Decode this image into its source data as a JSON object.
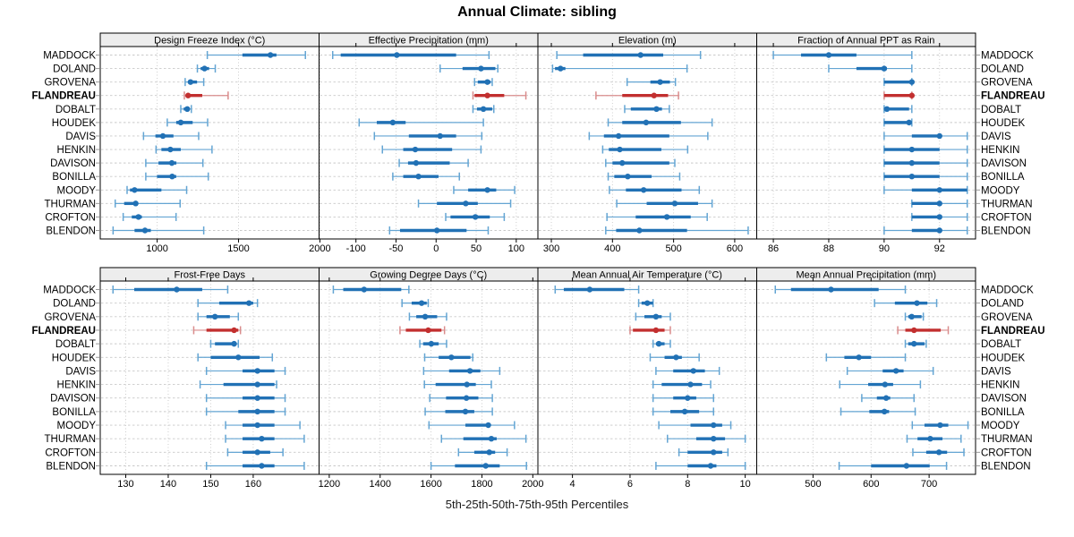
{
  "title": "Annual Climate: sibling",
  "caption": "5th-25th-50th-75th-95th Percentiles",
  "colors": {
    "series": "#2171B5",
    "series_light": "#64A5D3",
    "highlight": "#C22F2F",
    "highlight_light": "#D98C8C",
    "strip_bg": "#EDEDED",
    "grid": "#C9C9C9",
    "border": "#000000"
  },
  "chart_data": {
    "type": "dotplot-trellis",
    "grid": {
      "rows": 2,
      "cols": 4,
      "gridlines": "dashed"
    },
    "percentiles": [
      5,
      25,
      50,
      75,
      95
    ],
    "stations": [
      "MADDOCK",
      "DOLAND",
      "GROVENA",
      "FLANDREAU",
      "DOBALT",
      "HOUDEK",
      "DAVIS",
      "HENKIN",
      "DAVISON",
      "BONILLA",
      "MOODY",
      "THURMAN",
      "CROFTON",
      "BLENDON"
    ],
    "highlight_station": "FLANDREAU",
    "panels": [
      {
        "title": "Design Freeze Index (°C)",
        "xlim": [
          650,
          1995
        ],
        "ticks": [
          1000,
          1500,
          2000
        ],
        "values": [
          [
            1308,
            1524,
            1696,
            1733,
            1911
          ],
          [
            1247,
            1267,
            1291,
            1319,
            1357
          ],
          [
            1172,
            1190,
            1205,
            1245,
            1286
          ],
          [
            1167,
            1175,
            1190,
            1277,
            1436
          ],
          [
            1145,
            1163,
            1185,
            1200,
            1210
          ],
          [
            1062,
            1117,
            1145,
            1218,
            1310
          ],
          [
            916,
            989,
            1035,
            1100,
            1255
          ],
          [
            993,
            1026,
            1081,
            1145,
            1337
          ],
          [
            930,
            1008,
            1090,
            1118,
            1281
          ],
          [
            930,
            999,
            1092,
            1117,
            1314
          ],
          [
            815,
            833,
            861,
            1026,
            1181
          ],
          [
            742,
            797,
            868,
            879,
            1141
          ],
          [
            791,
            844,
            885,
            906,
            1116
          ],
          [
            729,
            861,
            925,
            961,
            1286
          ]
        ]
      },
      {
        "title": "Effective Precipitation (mm)",
        "xlim": [
          -146,
          127
        ],
        "ticks": [
          -100,
          -50,
          0,
          50,
          100
        ],
        "values": [
          [
            -129,
            -119,
            -49,
            25,
            66
          ],
          [
            5,
            33,
            56,
            74,
            77
          ],
          [
            48,
            52,
            64,
            68,
            70
          ],
          [
            46,
            48,
            64,
            85,
            112
          ],
          [
            46,
            51,
            59,
            70,
            72
          ],
          [
            -96,
            -74,
            -54,
            -38,
            59
          ],
          [
            -77,
            -34,
            5,
            25,
            57
          ],
          [
            -67,
            -41,
            -26,
            20,
            56
          ],
          [
            -46,
            -35,
            -25,
            17,
            40
          ],
          [
            -54,
            -41,
            -22,
            3,
            29
          ],
          [
            22,
            40,
            64,
            75,
            98
          ],
          [
            -22,
            1,
            37,
            52,
            93
          ],
          [
            12,
            18,
            49,
            67,
            85
          ],
          [
            -58,
            -45,
            1,
            38,
            65
          ]
        ]
      },
      {
        "title": "Elevation (m)",
        "xlim": [
          278,
          636
        ],
        "ticks": [
          300,
          400,
          500,
          600
        ],
        "values": [
          [
            309,
            352,
            446,
            483,
            544
          ],
          [
            302,
            306,
            315,
            323,
            522
          ],
          [
            424,
            462,
            478,
            494,
            503
          ],
          [
            373,
            416,
            468,
            491,
            508
          ],
          [
            420,
            430,
            472,
            481,
            493
          ],
          [
            393,
            416,
            455,
            512,
            563
          ],
          [
            362,
            386,
            410,
            493,
            556
          ],
          [
            384,
            394,
            412,
            480,
            523
          ],
          [
            389,
            400,
            416,
            493,
            502
          ],
          [
            393,
            403,
            425,
            464,
            510
          ],
          [
            395,
            422,
            451,
            513,
            542
          ],
          [
            407,
            456,
            502,
            540,
            563
          ],
          [
            391,
            438,
            489,
            528,
            555
          ],
          [
            389,
            406,
            444,
            522,
            622
          ]
        ]
      },
      {
        "title": "Fraction of Annual PPT as Rain",
        "xlim": [
          85.4,
          93.3
        ],
        "ticks": [
          86,
          88,
          90,
          92
        ],
        "values": [
          [
            86,
            87,
            88,
            89,
            91
          ],
          [
            88,
            89,
            90,
            90.1,
            91
          ],
          [
            90,
            90,
            91,
            91,
            91
          ],
          [
            90,
            90,
            91,
            91,
            91
          ],
          [
            90,
            90,
            90.1,
            90.9,
            91
          ],
          [
            90,
            90,
            90.9,
            91,
            91
          ],
          [
            90,
            91,
            92,
            92,
            93
          ],
          [
            90,
            90,
            91,
            92,
            93
          ],
          [
            90,
            90,
            91,
            92,
            93
          ],
          [
            90,
            90,
            91,
            92,
            93
          ],
          [
            90,
            91,
            92,
            93,
            93
          ],
          [
            91,
            91,
            92,
            92,
            93
          ],
          [
            91,
            91,
            92,
            92,
            93
          ],
          [
            90,
            91,
            92,
            92,
            93
          ]
        ]
      },
      {
        "title": "Frost-Free Days",
        "xlim": [
          124,
          175.5
        ],
        "ticks": [
          130,
          140,
          150,
          160
        ],
        "values": [
          [
            127,
            132,
            142,
            148,
            154
          ],
          [
            147,
            152,
            159,
            160,
            161
          ],
          [
            147,
            149,
            151,
            154.5,
            156.5
          ],
          [
            146,
            149,
            155.5,
            156.5,
            157
          ],
          [
            150,
            151,
            155.5,
            156,
            156.5
          ],
          [
            147,
            150,
            156.5,
            161.5,
            164.5
          ],
          [
            149,
            157.5,
            161,
            165,
            167.5
          ],
          [
            147.5,
            153,
            161,
            165,
            165.5
          ],
          [
            149,
            157.5,
            161,
            165,
            167.5
          ],
          [
            149,
            156.5,
            161,
            165,
            167.5
          ],
          [
            153.5,
            157.5,
            161,
            165,
            171
          ],
          [
            153.5,
            157.5,
            162,
            165,
            172
          ],
          [
            154,
            157.5,
            161,
            164,
            167
          ],
          [
            149,
            157.5,
            162,
            165,
            172
          ]
        ]
      },
      {
        "title": "Growing Degree Days (°C)",
        "xlim": [
          1160,
          2020
        ],
        "ticks": [
          1200,
          1400,
          1600,
          1800,
          2000
        ],
        "values": [
          [
            1216,
            1255,
            1337,
            1483,
            1513
          ],
          [
            1486,
            1524,
            1563,
            1583,
            1589
          ],
          [
            1515,
            1542,
            1577,
            1624,
            1661
          ],
          [
            1478,
            1501,
            1589,
            1641,
            1653
          ],
          [
            1556,
            1569,
            1601,
            1630,
            1661
          ],
          [
            1575,
            1630,
            1680,
            1755,
            1764
          ],
          [
            1571,
            1671,
            1753,
            1794,
            1870
          ],
          [
            1574,
            1618,
            1741,
            1776,
            1837
          ],
          [
            1595,
            1659,
            1739,
            1786,
            1841
          ],
          [
            1577,
            1656,
            1735,
            1770,
            1841
          ],
          [
            1592,
            1735,
            1825,
            1832,
            1928
          ],
          [
            1641,
            1727,
            1837,
            1858,
            1973
          ],
          [
            1708,
            1770,
            1829,
            1852,
            1899
          ],
          [
            1600,
            1694,
            1815,
            1870,
            1975
          ]
        ]
      },
      {
        "title": "Mean Annual Air Temperature (°C)",
        "xlim": [
          2.8,
          10.4
        ],
        "ticks": [
          4,
          6,
          8,
          10
        ],
        "values": [
          [
            3.4,
            3.7,
            4.6,
            5.8,
            6.3
          ],
          [
            6.3,
            6.4,
            6.6,
            6.8,
            6.8
          ],
          [
            6.2,
            6.5,
            6.9,
            7.1,
            7.4
          ],
          [
            6.0,
            6.1,
            6.9,
            7.2,
            7.4
          ],
          [
            6.8,
            6.9,
            7.0,
            7.2,
            7.4
          ],
          [
            6.7,
            7.2,
            7.6,
            7.8,
            8.4
          ],
          [
            6.9,
            7.5,
            8.2,
            8.6,
            9.1
          ],
          [
            6.8,
            7.1,
            8.1,
            8.5,
            8.8
          ],
          [
            6.8,
            7.5,
            8.0,
            8.3,
            8.9
          ],
          [
            6.8,
            7.4,
            7.9,
            8.4,
            8.9
          ],
          [
            7.0,
            8.1,
            8.9,
            9.2,
            9.5
          ],
          [
            7.3,
            8.3,
            8.9,
            9.3,
            10.0
          ],
          [
            7.7,
            8.0,
            8.9,
            9.2,
            9.4
          ],
          [
            6.9,
            8.0,
            8.8,
            9.0,
            10.0
          ]
        ]
      },
      {
        "title": "Mean Annual Precipitation (mm)",
        "xlim": [
          403,
          780
        ],
        "ticks": [
          500,
          600,
          700
        ],
        "values": [
          [
            435,
            462,
            531,
            613,
            659
          ],
          [
            606,
            641,
            679,
            697,
            713
          ],
          [
            659,
            664,
            670,
            687,
            690
          ],
          [
            646,
            659,
            674,
            720,
            733
          ],
          [
            659,
            664,
            674,
            692,
            695
          ],
          [
            523,
            554,
            579,
            600,
            659
          ],
          [
            559,
            620,
            643,
            656,
            707
          ],
          [
            546,
            595,
            624,
            638,
            685
          ],
          [
            584,
            610,
            626,
            633,
            674
          ],
          [
            548,
            597,
            623,
            631,
            676
          ],
          [
            671,
            692,
            719,
            733,
            767
          ],
          [
            662,
            680,
            702,
            723,
            755
          ],
          [
            672,
            695,
            717,
            731,
            760
          ],
          [
            545,
            600,
            661,
            701,
            730
          ]
        ]
      }
    ]
  }
}
